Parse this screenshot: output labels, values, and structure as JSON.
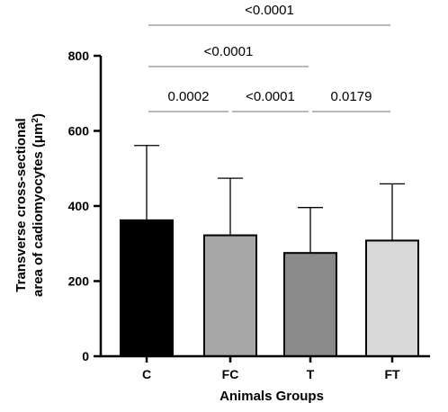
{
  "chart_data": {
    "type": "bar",
    "categories": [
      "C",
      "FC",
      "T",
      "FT"
    ],
    "values": [
      362,
      322,
      275,
      308
    ],
    "error_upper": [
      561,
      474,
      396,
      459
    ],
    "colors": [
      "#000000",
      "#a6a6a6",
      "#8a8a8a",
      "#d9d9d9"
    ],
    "xlabel": "Animals Groups",
    "ylabel_line1": "Transverse cross-sectional",
    "ylabel_line2_prefix": "area of cadiomyocytes (μm",
    "ylabel_sup": "2",
    "ylabel_suffix": ")",
    "ylim": [
      0,
      800
    ],
    "yticks": [
      "0",
      "200",
      "400",
      "600",
      "800"
    ],
    "grid": false,
    "comparisons": [
      {
        "from": 0,
        "to": 3,
        "label": "<0.0001",
        "level": 3
      },
      {
        "from": 0,
        "to": 2,
        "label": "<0.0001",
        "level": 2
      },
      {
        "from": 0,
        "to": 1,
        "label": "0.0002",
        "level": 1
      },
      {
        "from": 1,
        "to": 2,
        "label": "<0.0001",
        "level": 1
      },
      {
        "from": 2,
        "to": 3,
        "label": "0.0179",
        "level": 1
      }
    ]
  }
}
